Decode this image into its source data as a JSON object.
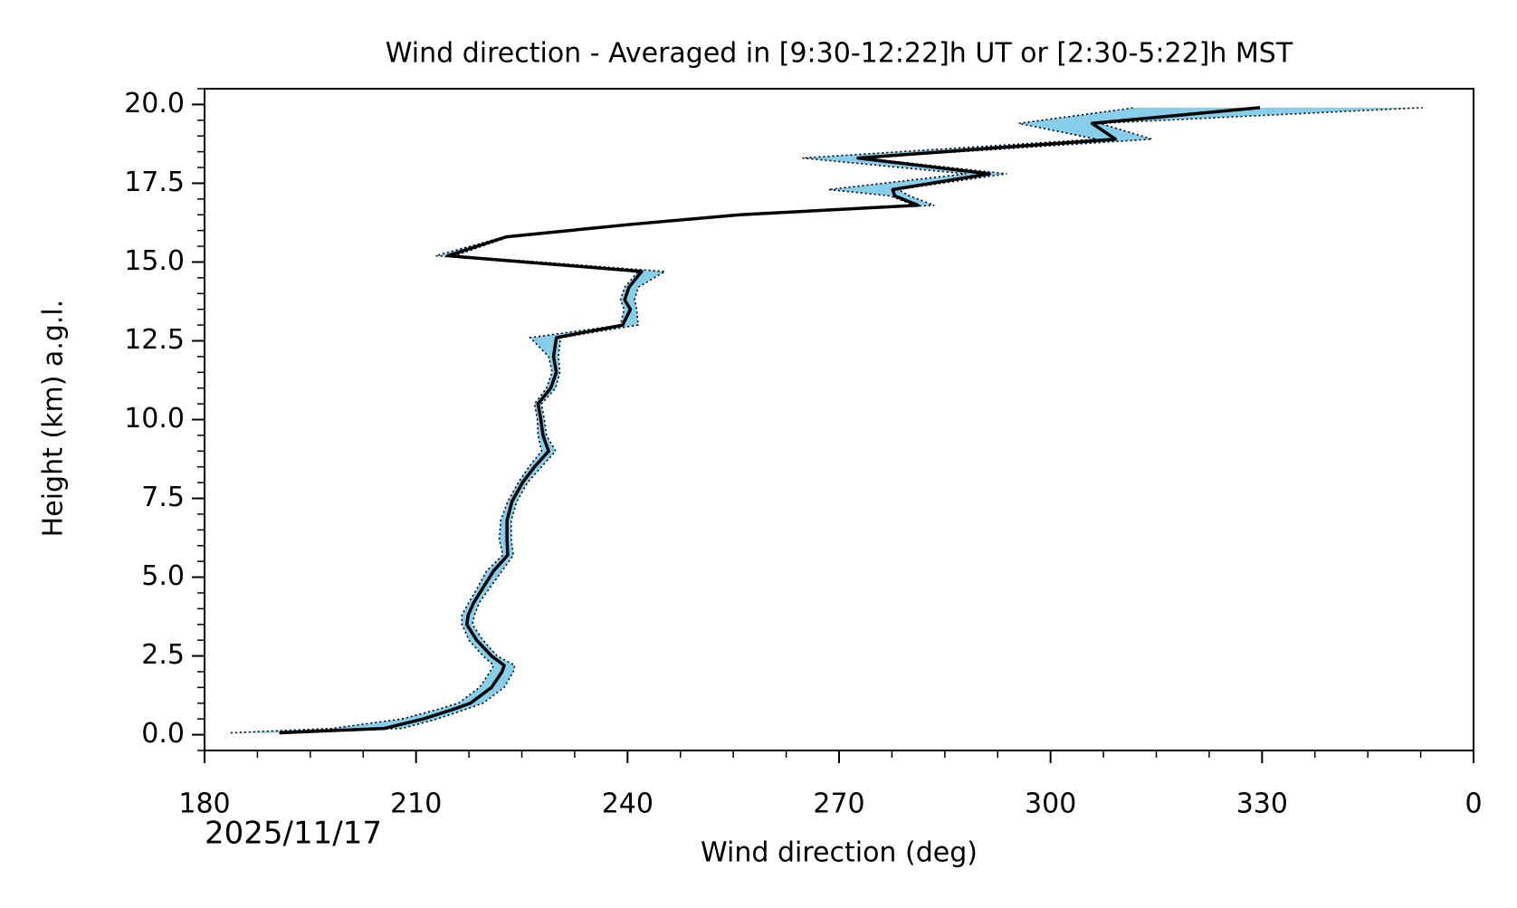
{
  "chart_data": {
    "type": "line",
    "title": "Wind direction - Averaged in [9:30-12:22]h UT or [2:30-5:22]h MST",
    "xlabel": "Wind direction (deg)",
    "ylabel": "Height (km) a.g.l.",
    "annotation": "2025/11/17",
    "xlim": [
      180,
      360
    ],
    "ylim": [
      -0.5,
      20.5
    ],
    "xticks": [
      180,
      210,
      240,
      270,
      300,
      330,
      {
        "value": 360,
        "label": "0"
      }
    ],
    "yticks": [
      {
        "value": 0,
        "label": "0.0"
      },
      2.5,
      {
        "value": 5,
        "label": "5.0"
      },
      7.5,
      {
        "value": 10,
        "label": "10.0"
      },
      12.5,
      {
        "value": 15,
        "label": "15.0"
      },
      17.5,
      {
        "value": 20,
        "label": "20.0"
      }
    ],
    "xminorstep": 7.5,
    "yminorstep": 0.5,
    "y": [
      0.06,
      0.2,
      0.5,
      0.8,
      1.0,
      1.5,
      2.0,
      2.2,
      2.5,
      3.0,
      3.5,
      3.8,
      4.2,
      4.7,
      5.2,
      5.7,
      6.2,
      6.8,
      7.4,
      8.0,
      8.5,
      9.0,
      9.5,
      10.0,
      10.5,
      11.0,
      11.5,
      12.0,
      12.6,
      13.0,
      13.5,
      13.8,
      14.2,
      14.7,
      15.2,
      15.8,
      16.2,
      16.5,
      16.8,
      17.1,
      17.3,
      17.8,
      18.3,
      18.9,
      19.4,
      19.9
    ],
    "mean": {
      "color": "#000000",
      "values": [
        190.6,
        205.5,
        211,
        215.2,
        217.7,
        220.7,
        222.2,
        222.5,
        220.7,
        218.6,
        217.2,
        217.4,
        218.2,
        219.6,
        221,
        223,
        222.9,
        222.9,
        223.6,
        225.1,
        226.8,
        228.8,
        228,
        227.7,
        227.3,
        229.1,
        229.9,
        229.5,
        229.9,
        239.3,
        240.4,
        239.6,
        240.2,
        242,
        214.5,
        222.8,
        240.7,
        255.9,
        281.2,
        277.9,
        277.6,
        291.3,
        272.7,
        309.2,
        305.9,
        329.7
      ]
    },
    "band": {
      "color": "#87ceeb",
      "lower": [
        183.7,
        198,
        208,
        213,
        216,
        219,
        220.5,
        221,
        219.5,
        217.5,
        216.5,
        216.5,
        217.5,
        218.8,
        220,
        222.3,
        221.8,
        222,
        223,
        224.5,
        226,
        227.8,
        227.3,
        227.2,
        226.8,
        228.5,
        229.3,
        228.8,
        226.2,
        239,
        239.5,
        239,
        239.6,
        241.5,
        212.8,
        222.5,
        240.5,
        255.7,
        280.7,
        277.2,
        268.5,
        288,
        264.8,
        306.5,
        295.5,
        312
      ],
      "upper": [
        191,
        208,
        213,
        217,
        219.5,
        222.5,
        223.8,
        224,
        221.5,
        219.5,
        218,
        218.3,
        219,
        220.6,
        222.2,
        223.8,
        223.5,
        223.5,
        224.3,
        225.8,
        227.8,
        229.8,
        228.5,
        228.2,
        227.8,
        229.8,
        230.4,
        230.2,
        230.5,
        241.5,
        241.3,
        241,
        241.5,
        245.3,
        215.5,
        223.2,
        241,
        256.2,
        283.5,
        280,
        278.4,
        293.8,
        273.5,
        314.4,
        307,
        352.8
      ]
    }
  }
}
